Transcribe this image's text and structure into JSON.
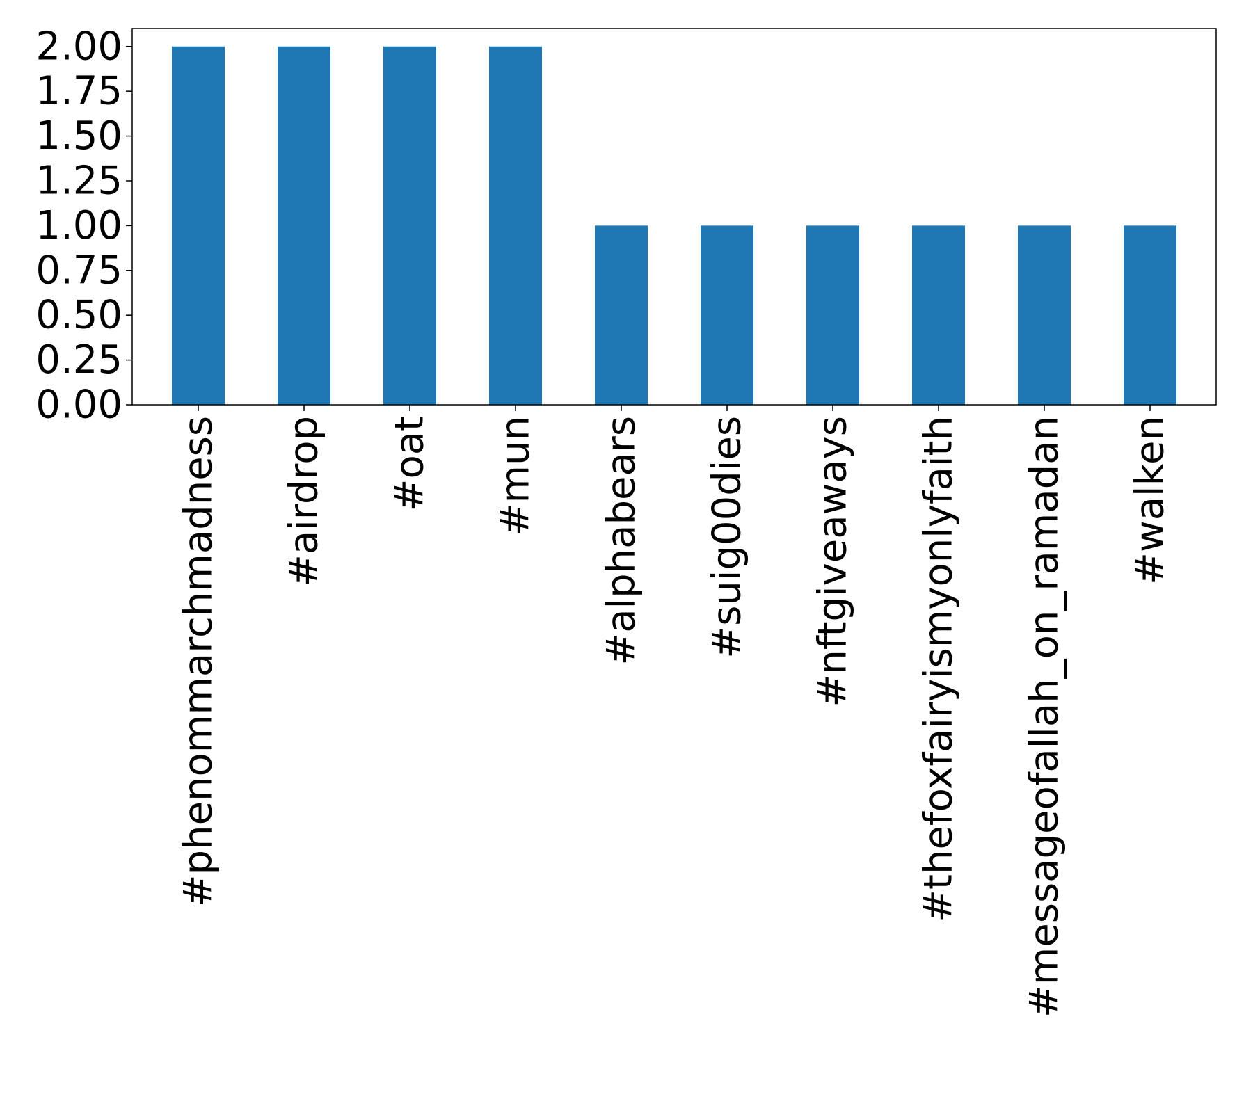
{
  "chart_data": {
    "type": "bar",
    "categories": [
      "#phenommarchmadness",
      "#airdrop",
      "#oat",
      "#mun",
      "#alphabears",
      "#suig00dies",
      "#nftgiveaways",
      "#thefoxfairyismyonlyfaith",
      "#messageofallah_on_ramadan",
      "#walken"
    ],
    "values": [
      2,
      2,
      2,
      2,
      1,
      1,
      1,
      1,
      1,
      1
    ],
    "ylim": [
      0,
      2.1
    ],
    "yticks": [
      0.0,
      0.25,
      0.5,
      0.75,
      1.0,
      1.25,
      1.5,
      1.75,
      2.0
    ],
    "ytick_labels": [
      "0.00",
      "0.25",
      "0.50",
      "0.75",
      "1.00",
      "1.25",
      "1.50",
      "1.75",
      "2.00"
    ],
    "title": "",
    "xlabel": "",
    "ylabel": "",
    "grid": false,
    "bar_color": "#1f77b4"
  }
}
